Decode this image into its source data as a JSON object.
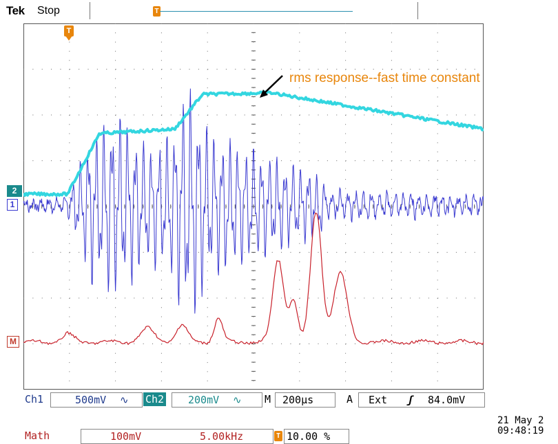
{
  "header": {
    "brand": "Tek",
    "run_state": "Stop",
    "record_trigger_icon": "T",
    "trigger_position_icon": "T"
  },
  "markers": {
    "ch2": "2",
    "ch1": "1",
    "math": "M"
  },
  "annotation": {
    "text": "rms response--fast time constant",
    "arrow_icon": "arrow-icon"
  },
  "status": {
    "ch1_label": "Ch1",
    "ch1_scale": "500mV",
    "ch1_coupling": "∿",
    "ch2_label": "Ch2",
    "ch2_scale": "200mV",
    "ch2_coupling": "∿",
    "timebase_label": "M",
    "timebase": "200μs",
    "trigger_mode": "A",
    "trigger_source": "Ext",
    "trigger_slope": "ʃ",
    "trigger_level": "84.0mV",
    "math_label": "Math",
    "math_scale": "100mV",
    "math_freq": "5.00kHz",
    "trigger_icon": "T",
    "trigger_percent": "10.00 %",
    "date": "21 May 2",
    "time": "09:48:19"
  },
  "colors": {
    "ch1": "#3a3ad0",
    "ch2": "#33d6e0",
    "math": "#c8202a",
    "trigger": "#e8860c",
    "grid": "#6a6a6a"
  },
  "chart_data": {
    "type": "line",
    "grid": true,
    "divisions": {
      "x": 10,
      "y": 8
    },
    "series": [
      {
        "name": "Ch1",
        "description_range": "burst oscillation"
      },
      {
        "name": "Ch2"
      },
      {
        "name": "Math"
      }
    ]
  }
}
